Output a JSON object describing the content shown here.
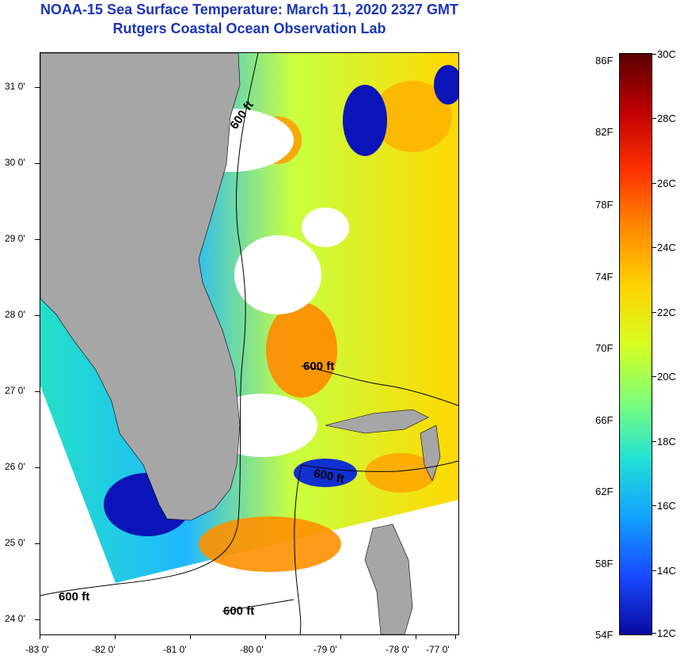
{
  "header": {
    "title": "NOAA-15 Sea Surface Temperature:  March 11, 2020 2327 GMT",
    "subtitle": "Rutgers Coastal Ocean Observation Lab"
  },
  "map": {
    "lat_labels": [
      "31 0'",
      "30 0'",
      "29 0'",
      "28 0'",
      "27 0'",
      "26 0'",
      "25 0'",
      "24 0'"
    ],
    "lon_labels": [
      "-83 0'",
      "-82 0'",
      "-81 0'",
      "-80 0'",
      "-79 0'",
      "-78 0'",
      "-77 0'"
    ],
    "contour_labels": [
      "600 ft",
      "600 ft",
      "600 ft",
      "600 ft",
      "600 ft"
    ],
    "land_color": "#a6a6a6",
    "cloud_color": "#ffffff"
  },
  "colorbar": {
    "fahrenheit_labels": [
      "86F",
      "82F",
      "78F",
      "74F",
      "70F",
      "66F",
      "62F",
      "58F",
      "54F"
    ],
    "celsius_labels": [
      "30C",
      "28C",
      "26C",
      "24C",
      "22C",
      "20C",
      "18C",
      "16C",
      "14C",
      "12C"
    ],
    "colors": [
      "#5a0000",
      "#c00000",
      "#ff3000",
      "#ff8a00",
      "#ffd200",
      "#d8ff20",
      "#7dff7a",
      "#20e0d8",
      "#12a0ff",
      "#1848ff",
      "#0a0aa0"
    ]
  }
}
